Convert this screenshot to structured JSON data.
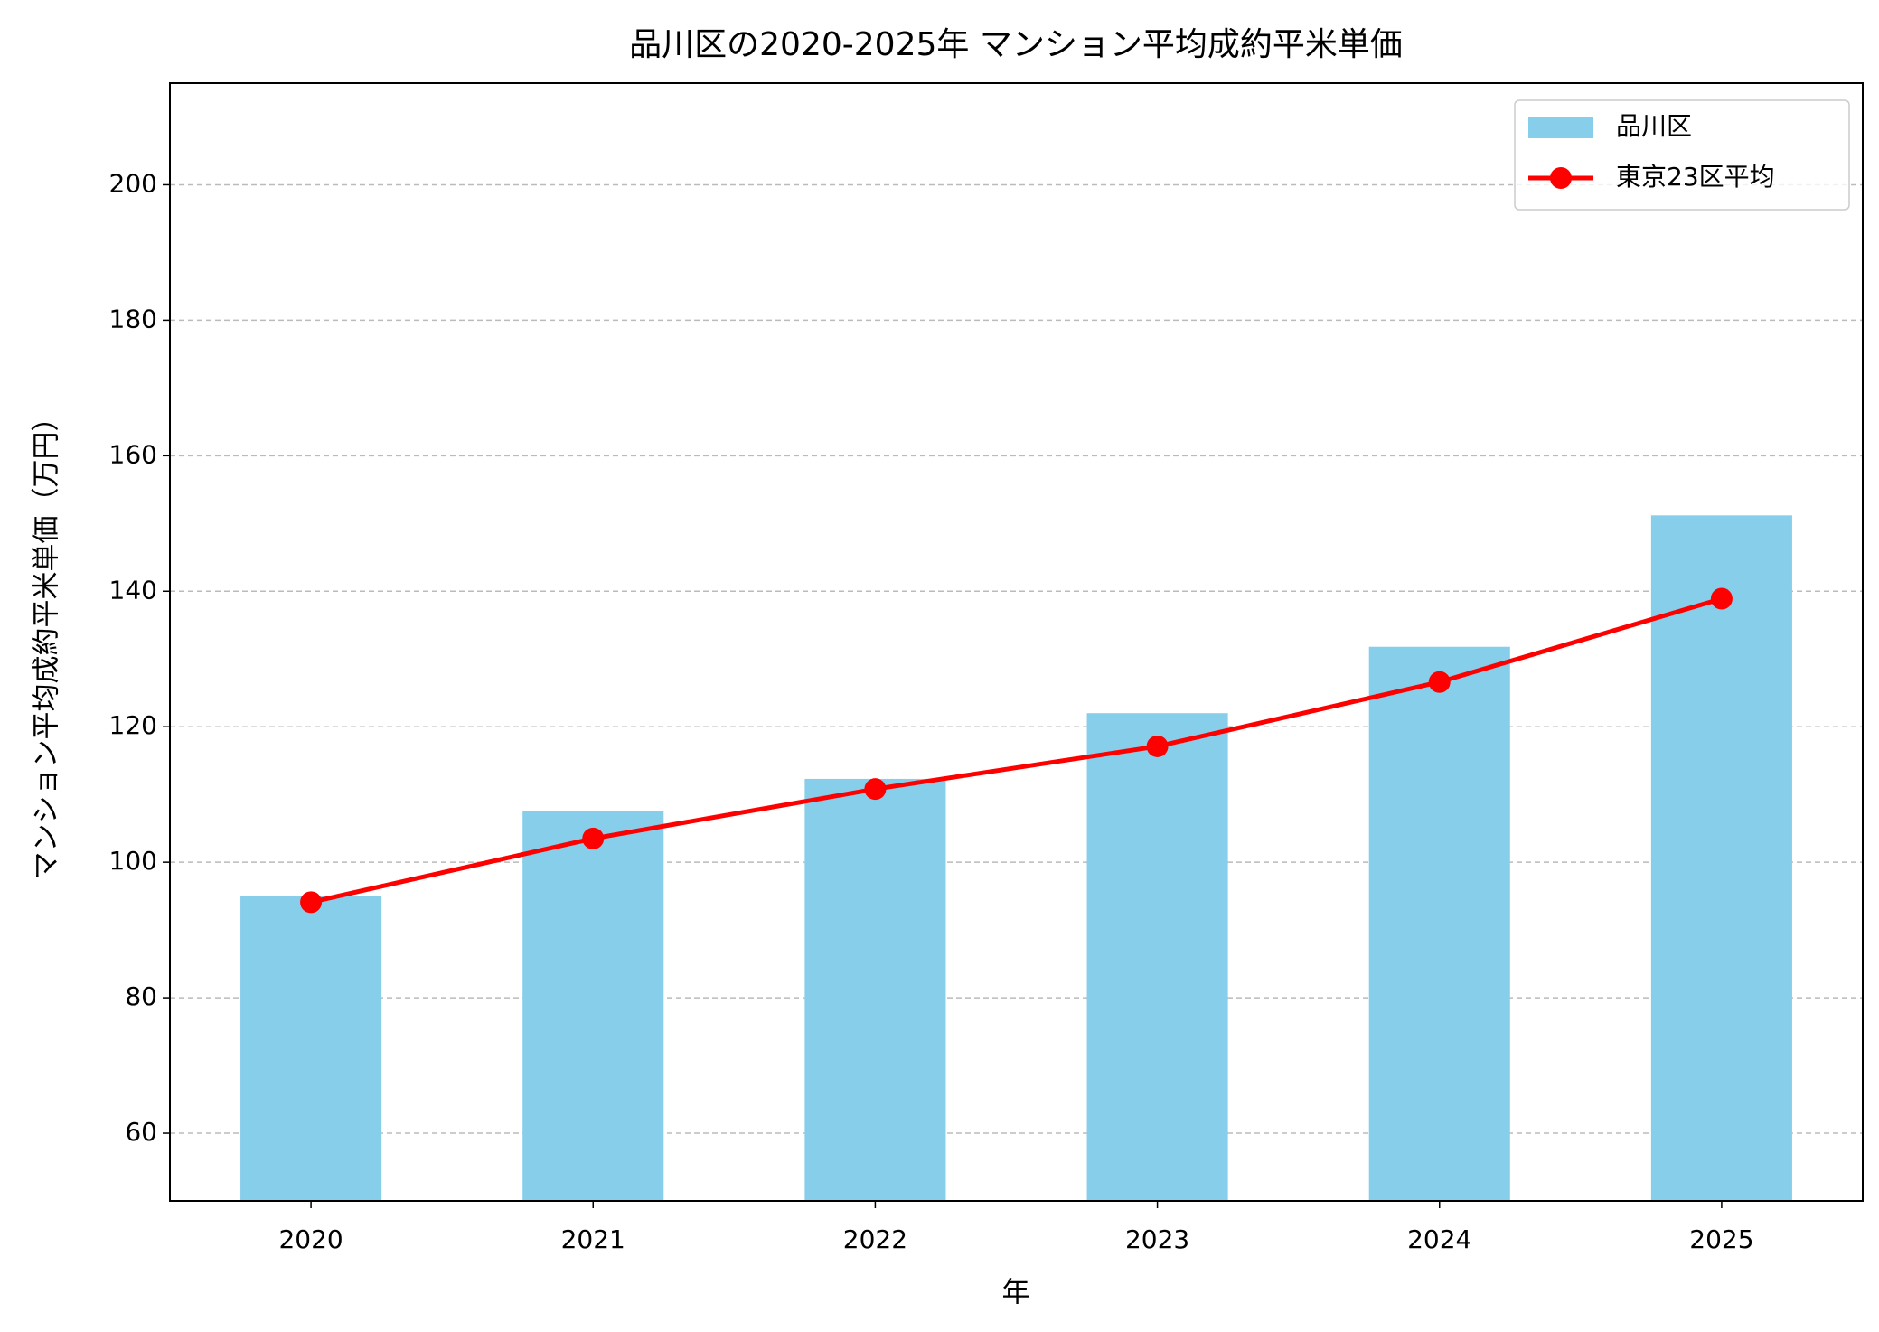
{
  "chart_data": {
    "type": "bar",
    "title": "品川区の2020-2025年 マンション平均成約平米単価",
    "x_label": "年",
    "y_label": "マンション平均成約平米単価（万円）",
    "categories": [
      "2020",
      "2021",
      "2022",
      "2023",
      "2024",
      "2025"
    ],
    "series": [
      {
        "name": "品川区",
        "type": "bar",
        "color": "#87ceeb",
        "values": [
          95,
          107.5,
          112.3,
          122,
          131.8,
          151.2
        ]
      },
      {
        "name": "東京23区平均",
        "type": "line",
        "color": "#ff0000",
        "values": [
          94.1,
          103.5,
          110.8,
          117.1,
          126.6,
          138.9
        ]
      }
    ],
    "ylim": [
      50,
      215
    ],
    "yticks": [
      60,
      80,
      100,
      120,
      140,
      160,
      180,
      200
    ],
    "grid": true,
    "legend": "upper right"
  }
}
